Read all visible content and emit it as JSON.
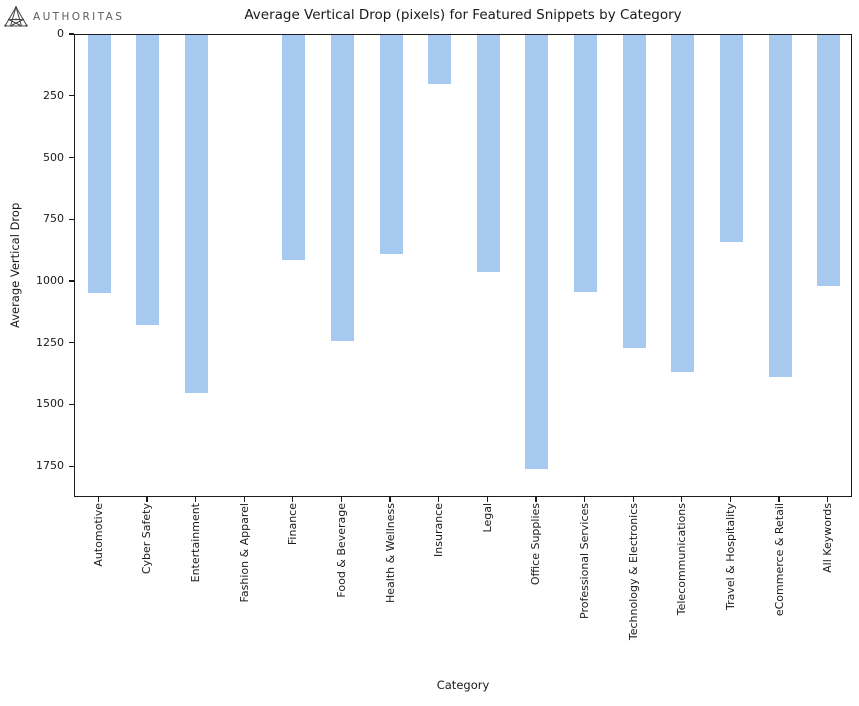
{
  "logo": {
    "brand": "AUTHORITAS",
    "icon": "authoritas-triangle-constellation-icon"
  },
  "chart_data": {
    "type": "bar",
    "title": "Average Vertical Drop (pixels) for Featured Snippets by Category",
    "xlabel": "Category",
    "ylabel": "Average Vertical Drop",
    "categories": [
      "Automotive",
      "Cyber Safety",
      "Entertainment",
      "Fashion & Apparel",
      "Finance",
      "Food & Beverage",
      "Health & Wellness",
      "Insurance",
      "Legal",
      "Office Supplies",
      "Professional Services",
      "Technology & Electronics",
      "Telecommunications",
      "Travel & Hospitality",
      "eCommerce & Retail",
      "All Keywords"
    ],
    "values": [
      1050,
      1180,
      1455,
      0,
      915,
      1245,
      890,
      200,
      965,
      1765,
      1045,
      1275,
      1370,
      840,
      1390,
      1020
    ],
    "yticks": [
      0,
      250,
      500,
      750,
      1000,
      1250,
      1500,
      1750
    ],
    "ylim": [
      0,
      1875
    ],
    "y_axis_inverted": true,
    "grid": false,
    "legend_position": "none",
    "bar_color": "#a6c9f0",
    "spine_color": "#1a1a1a",
    "text_color": "#1a1a1a",
    "background_color": "#ffffff"
  }
}
